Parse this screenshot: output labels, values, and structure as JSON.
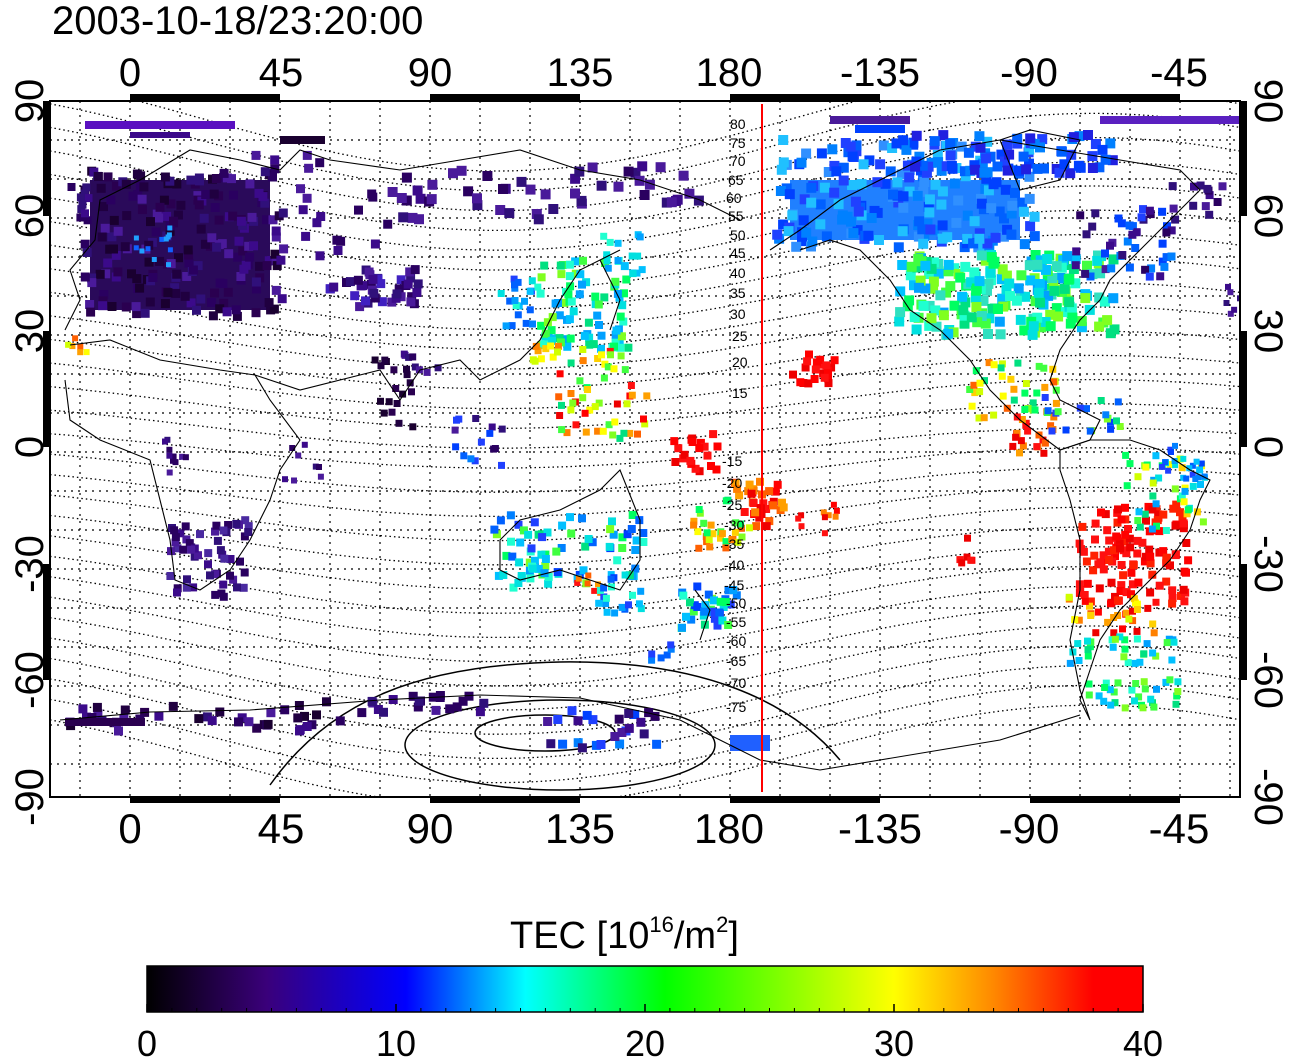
{
  "title": "2003-10-18/23:20:00",
  "map": {
    "top_lon_labels": [
      "0",
      "45",
      "90",
      "135",
      "180",
      "-135",
      "-90",
      "-45"
    ],
    "bottom_lon_labels": [
      "0",
      "45",
      "90",
      "135",
      "180",
      "-135",
      "-90",
      "-45"
    ],
    "lat_labels": [
      "90",
      "60",
      "30",
      "0",
      "-30",
      "-60",
      "-90"
    ],
    "contour_labels": [
      "80",
      "75",
      "70",
      "65",
      "60",
      "55",
      "50",
      "45",
      "40",
      "35",
      "30",
      "25",
      "20",
      "15",
      "-15",
      "-20",
      "-25",
      "-30",
      "-35",
      "-40",
      "-45",
      "-50",
      "-55",
      "-60",
      "-65",
      "-70",
      "-75"
    ],
    "marker_color": "#ff0000"
  },
  "colorbar": {
    "label_main": "TEC  [10",
    "label_exp1": "16",
    "label_mid": "/m",
    "label_exp2": "2",
    "label_end": "]",
    "ticks": [
      "0",
      "10",
      "20",
      "30",
      "40"
    ],
    "stops": [
      "#000000",
      "#3a007a",
      "#0000ff",
      "#00ffff",
      "#00ff00",
      "#ffff00",
      "#ff8800",
      "#ff0000"
    ]
  }
}
